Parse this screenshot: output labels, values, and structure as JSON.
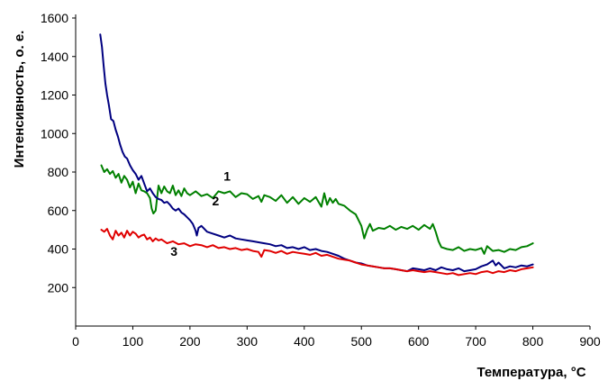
{
  "chart_data": {
    "type": "line",
    "title": "",
    "xlabel": "Температура, °C",
    "ylabel": "Интенсивность, о. е.",
    "xlim": [
      0,
      900
    ],
    "ylim": [
      0,
      1600
    ],
    "x_ticks": [
      0,
      100,
      200,
      300,
      400,
      500,
      600,
      700,
      800,
      900
    ],
    "y_ticks": [
      200,
      400,
      600,
      800,
      1000,
      1200,
      1400,
      1600
    ],
    "grid": false,
    "legend": "none",
    "series": [
      {
        "name": "1",
        "color": "#008000",
        "label_at": [
          265,
          755
        ],
        "x": [
          45,
          50,
          55,
          60,
          65,
          70,
          75,
          80,
          85,
          90,
          95,
          100,
          105,
          110,
          115,
          120,
          125,
          130,
          133,
          136,
          140,
          145,
          150,
          155,
          160,
          165,
          170,
          175,
          180,
          185,
          190,
          195,
          200,
          210,
          220,
          230,
          240,
          250,
          260,
          270,
          280,
          290,
          300,
          310,
          320,
          325,
          330,
          340,
          350,
          360,
          370,
          380,
          390,
          400,
          410,
          420,
          430,
          435,
          440,
          445,
          450,
          455,
          460,
          470,
          480,
          490,
          500,
          505,
          510,
          515,
          520,
          530,
          540,
          550,
          560,
          570,
          580,
          590,
          600,
          610,
          620,
          625,
          630,
          635,
          640,
          650,
          660,
          670,
          680,
          690,
          700,
          710,
          715,
          720,
          730,
          740,
          750,
          760,
          770,
          780,
          790,
          800
        ],
        "y": [
          835,
          800,
          815,
          790,
          805,
          770,
          790,
          745,
          780,
          760,
          720,
          750,
          690,
          740,
          705,
          700,
          690,
          665,
          610,
          585,
          600,
          730,
          690,
          725,
          700,
          690,
          730,
          680,
          705,
          675,
          715,
          690,
          680,
          700,
          675,
          685,
          665,
          700,
          690,
          700,
          670,
          690,
          685,
          660,
          675,
          645,
          680,
          670,
          650,
          680,
          640,
          670,
          635,
          665,
          645,
          670,
          620,
          690,
          630,
          665,
          640,
          660,
          635,
          625,
          600,
          580,
          520,
          455,
          500,
          530,
          495,
          510,
          505,
          520,
          500,
          515,
          505,
          520,
          500,
          525,
          505,
          530,
          490,
          440,
          410,
          400,
          395,
          410,
          390,
          400,
          395,
          405,
          375,
          415,
          390,
          395,
          385,
          400,
          395,
          410,
          415,
          430
        ]
      },
      {
        "name": "2",
        "color": "#000080",
        "label_at": [
          245,
          628
        ],
        "x": [
          43,
          46,
          49,
          52,
          55,
          58,
          62,
          66,
          70,
          74,
          78,
          82,
          86,
          90,
          95,
          100,
          105,
          110,
          115,
          120,
          125,
          130,
          135,
          140,
          145,
          150,
          155,
          160,
          165,
          170,
          175,
          180,
          185,
          190,
          195,
          200,
          205,
          210,
          212,
          215,
          220,
          225,
          230,
          240,
          250,
          260,
          270,
          280,
          290,
          300,
          310,
          320,
          330,
          340,
          350,
          360,
          370,
          380,
          390,
          400,
          410,
          420,
          430,
          440,
          450,
          460,
          470,
          480,
          490,
          500,
          510,
          520,
          530,
          540,
          550,
          560,
          570,
          580,
          590,
          600,
          610,
          620,
          630,
          640,
          650,
          660,
          670,
          680,
          690,
          700,
          710,
          720,
          730,
          735,
          740,
          750,
          760,
          770,
          780,
          790,
          800
        ],
        "y": [
          1515,
          1450,
          1350,
          1260,
          1200,
          1150,
          1075,
          1065,
          1020,
          985,
          940,
          905,
          880,
          870,
          835,
          810,
          790,
          760,
          780,
          740,
          700,
          715,
          690,
          670,
          660,
          655,
          640,
          645,
          630,
          610,
          600,
          610,
          590,
          580,
          565,
          550,
          530,
          495,
          470,
          510,
          520,
          505,
          490,
          480,
          470,
          460,
          470,
          455,
          450,
          445,
          440,
          435,
          430,
          425,
          415,
          420,
          405,
          410,
          400,
          410,
          395,
          400,
          390,
          385,
          375,
          365,
          350,
          340,
          330,
          325,
          315,
          310,
          305,
          300,
          300,
          295,
          290,
          285,
          300,
          295,
          290,
          300,
          290,
          305,
          295,
          290,
          300,
          285,
          290,
          295,
          310,
          320,
          340,
          315,
          330,
          300,
          310,
          305,
          315,
          310,
          320
        ]
      },
      {
        "name": "3",
        "color": "#e00000",
        "label_at": [
          172,
          365
        ],
        "x": [
          45,
          50,
          55,
          60,
          65,
          70,
          75,
          80,
          85,
          90,
          95,
          100,
          105,
          110,
          115,
          120,
          125,
          130,
          135,
          140,
          145,
          150,
          160,
          170,
          180,
          190,
          200,
          210,
          220,
          230,
          240,
          250,
          260,
          270,
          280,
          290,
          300,
          310,
          320,
          325,
          330,
          340,
          350,
          360,
          370,
          380,
          390,
          400,
          410,
          420,
          430,
          440,
          450,
          460,
          470,
          480,
          490,
          500,
          510,
          520,
          530,
          540,
          550,
          560,
          570,
          580,
          590,
          600,
          610,
          620,
          630,
          640,
          650,
          660,
          670,
          680,
          690,
          700,
          710,
          720,
          730,
          740,
          750,
          760,
          770,
          780,
          790,
          800
        ],
        "y": [
          500,
          490,
          505,
          470,
          450,
          495,
          470,
          485,
          460,
          495,
          470,
          490,
          480,
          460,
          470,
          475,
          450,
          460,
          440,
          455,
          445,
          450,
          430,
          440,
          425,
          430,
          415,
          425,
          420,
          410,
          420,
          405,
          410,
          400,
          405,
          395,
          400,
          390,
          385,
          360,
          395,
          390,
          380,
          390,
          375,
          385,
          380,
          375,
          370,
          380,
          365,
          370,
          360,
          350,
          345,
          340,
          330,
          320,
          315,
          310,
          305,
          300,
          300,
          295,
          290,
          285,
          290,
          285,
          280,
          285,
          280,
          275,
          270,
          275,
          265,
          270,
          275,
          270,
          280,
          285,
          275,
          285,
          280,
          290,
          285,
          295,
          300,
          305
        ]
      }
    ]
  }
}
